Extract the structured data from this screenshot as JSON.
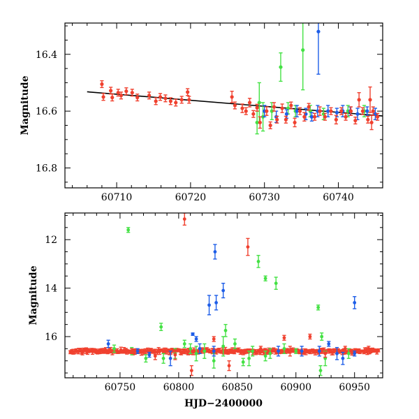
{
  "colors": {
    "red": "#f0402e",
    "green": "#44e144",
    "blue": "#1e5ee8",
    "black": "#000000"
  },
  "chart_data": [
    {
      "type": "scatter",
      "title": "",
      "xlabel": "",
      "ylabel": "Magnitude",
      "xlim": [
        60703,
        60746
      ],
      "ylim": [
        16.87,
        16.29
      ],
      "y_inverted": true,
      "xticks": [
        60710,
        60720,
        60730,
        60740
      ],
      "xtick_labels": [
        "60710",
        "60720",
        "60730",
        "60740"
      ],
      "yticks": [
        16.4,
        16.6,
        16.8
      ],
      "ytick_labels": [
        "16.4",
        "16.6",
        "16.8"
      ],
      "fit_line": {
        "x": [
          60706,
          60746
        ],
        "y": [
          16.532,
          16.617
        ],
        "color": "black"
      },
      "series": [
        {
          "name": "red",
          "color": "red",
          "points": [
            [
              60708.0,
              16.505,
              0.012
            ],
            [
              60708.2,
              16.55,
              0.012
            ],
            [
              60709.2,
              16.528,
              0.012
            ],
            [
              60709.4,
              16.552,
              0.012
            ],
            [
              60710.2,
              16.535,
              0.012
            ],
            [
              60710.6,
              16.545,
              0.012
            ],
            [
              60711.3,
              16.53,
              0.012
            ],
            [
              60712.1,
              16.535,
              0.012
            ],
            [
              60712.8,
              16.552,
              0.012
            ],
            [
              60714.4,
              16.545,
              0.012
            ],
            [
              60715.3,
              16.565,
              0.012
            ],
            [
              60715.9,
              16.55,
              0.012
            ],
            [
              60716.6,
              16.555,
              0.012
            ],
            [
              60717.3,
              16.565,
              0.012
            ],
            [
              60718.0,
              16.57,
              0.012
            ],
            [
              60718.8,
              16.56,
              0.012
            ],
            [
              60719.6,
              16.533,
              0.012
            ],
            [
              60719.8,
              16.56,
              0.012
            ],
            [
              60725.6,
              16.55,
              0.02
            ],
            [
              60726.0,
              16.58,
              0.012
            ],
            [
              60727.0,
              16.59,
              0.015
            ],
            [
              60727.5,
              16.6,
              0.012
            ],
            [
              60728.0,
              16.57,
              0.015
            ],
            [
              60728.5,
              16.61,
              0.012
            ],
            [
              60729.0,
              16.588,
              0.012
            ],
            [
              60729.4,
              16.64,
              0.02
            ],
            [
              60730.3,
              16.6,
              0.015
            ],
            [
              60730.8,
              16.65,
              0.012
            ],
            [
              60731.3,
              16.585,
              0.015
            ],
            [
              60731.7,
              16.63,
              0.012
            ],
            [
              60732.4,
              16.59,
              0.015
            ],
            [
              60732.9,
              16.63,
              0.012
            ],
            [
              60733.6,
              16.58,
              0.012
            ],
            [
              60734.1,
              16.64,
              0.015
            ],
            [
              60734.8,
              16.6,
              0.012
            ],
            [
              60735.4,
              16.62,
              0.015
            ],
            [
              60736.0,
              16.585,
              0.012
            ],
            [
              60736.8,
              16.62,
              0.012
            ],
            [
              60737.5,
              16.6,
              0.015
            ],
            [
              60738.2,
              16.62,
              0.012
            ],
            [
              60739.0,
              16.6,
              0.012
            ],
            [
              60739.7,
              16.63,
              0.015
            ],
            [
              60740.4,
              16.6,
              0.012
            ],
            [
              60741.0,
              16.62,
              0.012
            ],
            [
              60741.7,
              16.6,
              0.015
            ],
            [
              60742.3,
              16.633,
              0.012
            ],
            [
              60742.8,
              16.56,
              0.025
            ],
            [
              60743.3,
              16.6,
              0.012
            ],
            [
              60744.0,
              16.63,
              0.012
            ],
            [
              60744.7,
              16.6,
              0.015
            ],
            [
              60745.3,
              16.62,
              0.012
            ],
            [
              60744.3,
              16.56,
              0.045
            ],
            [
              60744.5,
              16.64,
              0.025
            ]
          ]
        },
        {
          "name": "green",
          "color": "green",
          "points": [
            [
              60729.0,
              16.64,
              0.04
            ],
            [
              60729.3,
              16.57,
              0.07
            ],
            [
              60729.8,
              16.62,
              0.05
            ],
            [
              60731.0,
              16.6,
              0.03
            ],
            [
              60732.2,
              16.445,
              0.05
            ],
            [
              60733.2,
              16.59,
              0.02
            ],
            [
              60734.2,
              16.6,
              0.02
            ],
            [
              60735.2,
              16.385,
              0.14
            ],
            [
              60736.2,
              16.6,
              0.02
            ],
            [
              60738.0,
              16.61,
              0.02
            ],
            [
              60741.3,
              16.6,
              0.02
            ],
            [
              60743.5,
              16.6,
              0.02
            ]
          ]
        },
        {
          "name": "blue",
          "color": "blue",
          "points": [
            [
              60730.0,
              16.6,
              0.02
            ],
            [
              60731.6,
              16.62,
              0.02
            ],
            [
              60733.0,
              16.61,
              0.015
            ],
            [
              60734.4,
              16.6,
              0.02
            ],
            [
              60735.6,
              16.61,
              0.02
            ],
            [
              60736.4,
              16.62,
              0.015
            ],
            [
              60737.2,
              16.6,
              0.02
            ],
            [
              60737.3,
              16.32,
              0.15
            ],
            [
              60738.6,
              16.6,
              0.02
            ],
            [
              60739.8,
              16.605,
              0.015
            ],
            [
              60740.6,
              16.6,
              0.02
            ],
            [
              60741.6,
              16.6,
              0.015
            ],
            [
              60742.6,
              16.61,
              0.02
            ],
            [
              60743.9,
              16.6,
              0.015
            ],
            [
              60745.0,
              16.61,
              0.02
            ]
          ]
        }
      ]
    },
    {
      "type": "scatter",
      "title": "",
      "xlabel": "HJD−2400000",
      "ylabel": "Magnitude",
      "xlim": [
        60703,
        60974
      ],
      "ylim": [
        17.7,
        10.9
      ],
      "y_inverted": true,
      "xticks": [
        60750,
        60800,
        60850,
        60900,
        60950
      ],
      "xtick_labels": [
        "60750",
        "60800",
        "60850",
        "60900",
        "60950"
      ],
      "yticks": [
        12,
        14,
        16
      ],
      "ytick_labels": [
        "12",
        "14",
        "16"
      ],
      "baseline": {
        "x_start": 60708,
        "x_end": 60970,
        "center": 16.6,
        "jitter": 0.05,
        "count": 240,
        "color": "red"
      },
      "series": [
        {
          "name": "red",
          "color": "red",
          "points": [
            [
              60805,
              11.15,
              0.25
            ],
            [
              60859,
              12.3,
              0.35
            ],
            [
              60811,
              17.4,
              0.2
            ],
            [
              60843,
              17.2,
              0.2
            ],
            [
              60890,
              16.05,
              0.1
            ],
            [
              60912,
              16.0,
              0.1
            ],
            [
              60830,
              16.1,
              0.1
            ],
            [
              60780,
              16.8,
              0.15
            ],
            [
              60870,
              16.5,
              0.1
            ],
            [
              60895,
              16.6,
              0.2
            ],
            [
              60925,
              16.7,
              0.15
            ],
            [
              60942,
              16.5,
              0.1
            ],
            [
              60962,
              16.5,
              0.1
            ],
            [
              60760,
              16.6,
              0.1
            ],
            [
              60797,
              16.75,
              0.2
            ]
          ]
        },
        {
          "name": "green",
          "color": "green",
          "points": [
            [
              60757,
              11.6,
              0.1
            ],
            [
              60868,
              12.9,
              0.25
            ],
            [
              60874,
              13.6,
              0.1
            ],
            [
              60883,
              13.8,
              0.25
            ],
            [
              60919,
              14.8,
              0.1
            ],
            [
              60785,
              15.6,
              0.15
            ],
            [
              60840,
              15.75,
              0.25
            ],
            [
              60805,
              16.3,
              0.15
            ],
            [
              60810,
              16.5,
              0.2
            ],
            [
              60815,
              16.7,
              0.3
            ],
            [
              60822,
              16.6,
              0.3
            ],
            [
              60838,
              16.4,
              0.4
            ],
            [
              60848,
              16.3,
              0.2
            ],
            [
              60863,
              16.6,
              0.2
            ],
            [
              60878,
              16.7,
              0.2
            ],
            [
              60890,
              16.5,
              0.2
            ],
            [
              60900,
              16.6,
              0.1
            ],
            [
              60922,
              16.0,
              0.15
            ],
            [
              60925,
              16.9,
              0.3
            ],
            [
              60945,
              16.7,
              0.2
            ],
            [
              60745,
              16.5,
              0.15
            ],
            [
              60760,
              16.6,
              0.15
            ],
            [
              60772,
              16.9,
              0.15
            ],
            [
              60787,
              16.9,
              0.2
            ],
            [
              60830,
              17.0,
              0.3
            ],
            [
              60860,
              16.9,
              0.3
            ],
            [
              60874,
              16.8,
              0.2
            ],
            [
              60921,
              17.4,
              0.2
            ],
            [
              60855,
              17.05,
              0.15
            ],
            [
              60797,
              16.7,
              0.2
            ]
          ]
        },
        {
          "name": "blue",
          "color": "blue",
          "points": [
            [
              60826,
              14.7,
              0.4
            ],
            [
              60831,
              12.5,
              0.3
            ],
            [
              60832,
              14.6,
              0.3
            ],
            [
              60838,
              14.1,
              0.3
            ],
            [
              60950,
              14.6,
              0.25
            ],
            [
              60740,
              16.3,
              0.15
            ],
            [
              60793,
              16.9,
              0.3
            ],
            [
              60815,
              16.1,
              0.1
            ],
            [
              60818,
              16.5,
              0.2
            ],
            [
              60830,
              16.6,
              0.2
            ],
            [
              60885,
              16.6,
              0.2
            ],
            [
              60905,
              16.6,
              0.2
            ],
            [
              60920,
              16.6,
              0.2
            ],
            [
              60928,
              16.3,
              0.1
            ],
            [
              60935,
              16.7,
              0.25
            ],
            [
              60940,
              16.9,
              0.25
            ],
            [
              60775,
              16.75,
              0.1
            ],
            [
              60812,
              15.9,
              0.05
            ],
            [
              60950,
              16.7,
              0.1
            ],
            [
              60765,
              16.6,
              0.1
            ]
          ]
        }
      ]
    }
  ]
}
